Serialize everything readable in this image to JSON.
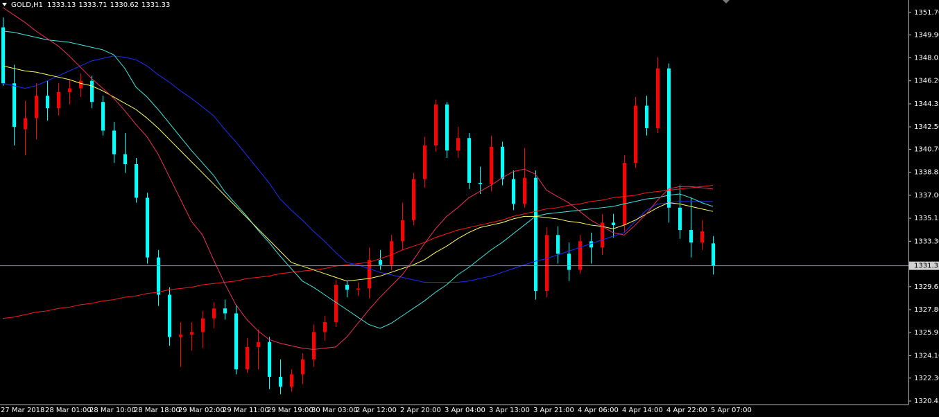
{
  "chart_data": {
    "type": "candlestick",
    "symbol": "GOLD,H1",
    "categories": [
      "27 Mar 2018",
      null,
      null,
      null,
      "28 Mar 01:00",
      null,
      null,
      null,
      "28 Mar 10:00",
      null,
      null,
      null,
      "28 Mar 18:00",
      null,
      null,
      null,
      "29 Mar 02:00",
      null,
      null,
      null,
      "29 Mar 11:00",
      null,
      null,
      null,
      "29 Mar 19:00",
      null,
      null,
      null,
      "30 Mar 03:00",
      null,
      null,
      null,
      "2 Apr 12:00",
      null,
      null,
      null,
      "2 Apr 20:00",
      null,
      null,
      null,
      "3 Apr 04:00",
      null,
      null,
      null,
      "3 Apr 13:00",
      null,
      null,
      null,
      "3 Apr 21:00",
      null,
      null,
      null,
      "4 Apr 06:00",
      null,
      null,
      null,
      "4 Apr 14:00",
      null,
      null,
      null,
      "4 Apr 22:00",
      null,
      null,
      null,
      "5 Apr 07:00"
    ],
    "ohlc": [
      [
        1350.5,
        1351.3,
        1345.8,
        1346.0
      ],
      [
        1346.0,
        1347.5,
        1341.0,
        1342.5
      ],
      [
        1342.3,
        1344.6,
        1340.2,
        1343.2
      ],
      [
        1343.2,
        1346.0,
        1341.5,
        1345.0
      ],
      [
        1345.0,
        1346.2,
        1343.0,
        1344.0
      ],
      [
        1344.0,
        1346.0,
        1343.4,
        1345.3
      ],
      [
        1345.3,
        1346.3,
        1344.3,
        1345.6
      ],
      [
        1345.6,
        1346.8,
        1344.9,
        1346.2
      ],
      [
        1346.2,
        1346.6,
        1344.0,
        1344.5
      ],
      [
        1344.5,
        1345.0,
        1341.8,
        1342.2
      ],
      [
        1342.2,
        1342.9,
        1339.6,
        1340.3
      ],
      [
        1340.3,
        1342.0,
        1338.8,
        1339.5
      ],
      [
        1339.5,
        1340.0,
        1336.4,
        1336.8
      ],
      [
        1336.8,
        1337.2,
        1331.5,
        1332.0
      ],
      [
        1332.0,
        1332.6,
        1328.1,
        1329.0
      ],
      [
        1329.0,
        1329.6,
        1324.9,
        1325.6
      ],
      [
        1325.6,
        1326.8,
        1323.2,
        1325.8
      ],
      [
        1325.8,
        1326.8,
        1324.5,
        1326.0
      ],
      [
        1326.0,
        1327.7,
        1324.7,
        1327.1
      ],
      [
        1327.1,
        1328.4,
        1326.3,
        1327.9
      ],
      [
        1327.9,
        1328.6,
        1327.0,
        1327.5
      ],
      [
        1327.5,
        1328.2,
        1322.6,
        1323.0
      ],
      [
        1323.0,
        1325.5,
        1322.7,
        1324.8
      ],
      [
        1324.8,
        1326.2,
        1323.0,
        1325.2
      ],
      [
        1325.2,
        1325.6,
        1321.4,
        1322.4
      ],
      [
        1322.4,
        1323.8,
        1321.0,
        1321.6
      ],
      [
        1321.6,
        1323.0,
        1321.2,
        1322.6
      ],
      [
        1322.6,
        1324.3,
        1321.8,
        1323.8
      ],
      [
        1323.8,
        1326.6,
        1323.2,
        1326.0
      ],
      [
        1326.0,
        1327.3,
        1325.3,
        1326.8
      ],
      [
        1326.8,
        1330.2,
        1326.4,
        1329.8
      ],
      [
        1329.8,
        1330.1,
        1328.8,
        1329.4
      ],
      [
        1329.4,
        1330.0,
        1328.9,
        1329.5
      ],
      [
        1329.5,
        1332.8,
        1328.7,
        1331.8
      ],
      [
        1331.8,
        1332.6,
        1331.0,
        1331.4
      ],
      [
        1331.4,
        1333.8,
        1331.0,
        1333.3
      ],
      [
        1333.3,
        1336.4,
        1332.6,
        1335.0
      ],
      [
        1335.0,
        1338.8,
        1334.6,
        1338.3
      ],
      [
        1338.3,
        1341.7,
        1337.6,
        1341.0
      ],
      [
        1341.0,
        1344.7,
        1340.5,
        1344.3
      ],
      [
        1344.3,
        1344.5,
        1340.0,
        1340.6
      ],
      [
        1340.6,
        1342.5,
        1340.0,
        1341.6
      ],
      [
        1341.6,
        1342.0,
        1337.5,
        1338.0
      ],
      [
        1338.0,
        1339.3,
        1337.1,
        1337.9
      ],
      [
        1337.9,
        1341.8,
        1337.3,
        1340.9
      ],
      [
        1340.9,
        1341.3,
        1337.8,
        1338.3
      ],
      [
        1338.3,
        1339.0,
        1335.8,
        1336.3
      ],
      [
        1336.3,
        1340.8,
        1336.0,
        1338.4
      ],
      [
        1338.4,
        1339.0,
        1328.6,
        1329.3
      ],
      [
        1329.3,
        1334.4,
        1328.8,
        1333.8
      ],
      [
        1333.8,
        1334.5,
        1331.5,
        1332.3
      ],
      [
        1332.3,
        1333.2,
        1330.1,
        1331.0
      ],
      [
        1331.0,
        1333.8,
        1330.7,
        1333.3
      ],
      [
        1333.3,
        1334.0,
        1331.5,
        1332.8
      ],
      [
        1332.8,
        1335.5,
        1332.2,
        1334.8
      ],
      [
        1334.8,
        1335.5,
        1333.6,
        1334.6
      ],
      [
        1334.6,
        1340.2,
        1334.0,
        1339.6
      ],
      [
        1339.6,
        1344.9,
        1339.2,
        1344.2
      ],
      [
        1344.2,
        1345.0,
        1341.8,
        1342.4
      ],
      [
        1342.4,
        1348.1,
        1342.0,
        1347.2
      ],
      [
        1347.2,
        1347.6,
        1334.8,
        1336.0
      ],
      [
        1336.0,
        1337.8,
        1333.5,
        1334.2
      ],
      [
        1334.2,
        1336.8,
        1332.0,
        1333.2
      ],
      [
        1333.2,
        1335.0,
        1332.6,
        1334.1
      ],
      [
        1333.13,
        1333.71,
        1330.62,
        1331.33
      ]
    ],
    "bull_color": "#ff0000",
    "bear_color": "#00ffff",
    "series": [
      {
        "color": "#ff1a1a",
        "values": [
          1327.1,
          1327.2,
          1327.4,
          1327.6,
          1327.7,
          1327.9,
          1328.0,
          1328.2,
          1328.3,
          1328.5,
          1328.6,
          1328.8,
          1328.9,
          1329.1,
          1329.2,
          1329.4,
          1329.5,
          1329.6,
          1329.8,
          1329.9,
          1330.0,
          1330.1,
          1330.3,
          1330.4,
          1330.5,
          1330.7,
          1330.8,
          1330.9,
          1331.0,
          1331.1,
          1331.3,
          1331.4,
          1331.5,
          1331.6,
          1331.9,
          1332.2,
          1332.6,
          1332.9,
          1333.2,
          1333.6,
          1333.9,
          1334.2,
          1334.4,
          1334.6,
          1334.8,
          1335.0,
          1335.3,
          1335.5,
          1335.7,
          1335.9,
          1336.0,
          1336.2,
          1336.3,
          1336.5,
          1336.6,
          1336.8,
          1336.9,
          1337.0,
          1337.2,
          1337.3,
          1337.4,
          1337.5,
          1337.6,
          1337.7,
          1337.8
        ]
      },
      {
        "color": "#1f2fff",
        "values": [
          1346.0,
          1345.8,
          1345.6,
          1345.8,
          1346.2,
          1346.6,
          1347.0,
          1347.4,
          1347.8,
          1348.0,
          1348.2,
          1348.1,
          1347.9,
          1347.4,
          1346.7,
          1346.1,
          1345.4,
          1344.8,
          1344.1,
          1343.4,
          1342.3,
          1341.3,
          1340.2,
          1339.1,
          1338.0,
          1336.7,
          1335.8,
          1335.0,
          1334.1,
          1333.3,
          1332.4,
          1331.6,
          1331.4,
          1331.1,
          1330.8,
          1330.6,
          1330.4,
          1330.2,
          1330.0,
          1330.0,
          1330.0,
          1330.0,
          1330.1,
          1330.3,
          1330.5,
          1330.8,
          1331.1,
          1331.4,
          1331.7,
          1331.9,
          1332.2,
          1332.5,
          1332.8,
          1333.1,
          1333.4,
          1333.7,
          1334.0,
          1334.9,
          1335.8,
          1336.3,
          1336.4,
          1336.5,
          1336.5,
          1336.5,
          1336.5
        ]
      },
      {
        "color": "#40e8e0",
        "values": [
          1350.2,
          1350.1,
          1349.9,
          1349.7,
          1349.5,
          1349.4,
          1349.3,
          1349.1,
          1348.9,
          1348.7,
          1348.3,
          1347.2,
          1345.7,
          1344.9,
          1343.9,
          1342.8,
          1341.7,
          1340.6,
          1339.6,
          1338.6,
          1337.3,
          1336.3,
          1335.3,
          1334.2,
          1333.2,
          1332.1,
          1331.1,
          1330.1,
          1329.6,
          1329.0,
          1328.4,
          1327.8,
          1327.2,
          1326.6,
          1326.3,
          1326.7,
          1327.3,
          1327.9,
          1328.5,
          1329.2,
          1329.8,
          1330.6,
          1331.2,
          1331.9,
          1332.6,
          1333.2,
          1333.9,
          1334.6,
          1335.3,
          1335.5,
          1335.6,
          1335.7,
          1335.8,
          1335.9,
          1336.0,
          1336.1,
          1336.3,
          1336.5,
          1336.7,
          1336.8,
          1337.0,
          1337.1,
          1336.8,
          1336.4,
          1336.1
        ]
      },
      {
        "color": "#ffff60",
        "values": [
          1347.4,
          1347.2,
          1347.0,
          1346.9,
          1346.7,
          1346.5,
          1346.3,
          1346.0,
          1345.8,
          1345.4,
          1344.9,
          1344.4,
          1343.9,
          1343.2,
          1342.4,
          1341.5,
          1340.6,
          1339.7,
          1338.8,
          1337.9,
          1337.0,
          1336.1,
          1335.2,
          1334.3,
          1333.4,
          1332.5,
          1331.6,
          1331.3,
          1331.0,
          1330.7,
          1330.4,
          1330.1,
          1330.2,
          1330.3,
          1330.5,
          1330.8,
          1331.1,
          1331.4,
          1331.8,
          1332.4,
          1332.9,
          1333.5,
          1334.0,
          1334.4,
          1334.6,
          1334.8,
          1335.1,
          1335.3,
          1335.3,
          1335.2,
          1335.1,
          1334.9,
          1334.8,
          1334.6,
          1334.5,
          1334.3,
          1334.6,
          1335.0,
          1335.5,
          1336.0,
          1336.4,
          1336.3,
          1336.1,
          1335.9,
          1335.7
        ]
      },
      {
        "color": "#f0305a",
        "values": [
          1352.1,
          1351.5,
          1350.9,
          1350.2,
          1349.6,
          1349.0,
          1348.2,
          1347.3,
          1346.4,
          1345.6,
          1344.8,
          1343.8,
          1342.7,
          1341.7,
          1340.3,
          1338.5,
          1336.7,
          1334.9,
          1333.8,
          1331.8,
          1329.9,
          1328.2,
          1327.0,
          1326.1,
          1325.4,
          1325.1,
          1324.9,
          1324.7,
          1324.6,
          1324.7,
          1324.8,
          1325.6,
          1326.7,
          1327.8,
          1328.8,
          1329.7,
          1330.6,
          1331.8,
          1333.1,
          1334.3,
          1335.3,
          1336.0,
          1336.8,
          1337.3,
          1337.8,
          1338.4,
          1338.9,
          1339.1,
          1338.7,
          1337.4,
          1336.9,
          1336.4,
          1335.7,
          1335.0,
          1334.5,
          1334.0,
          1333.8,
          1334.6,
          1335.5,
          1336.6,
          1337.5,
          1337.7,
          1337.7,
          1337.6,
          1337.5
        ]
      }
    ],
    "ylim": [
      1320.17,
      1352.7
    ],
    "yticks": [
      {
        "value": 1351.7,
        "label": "1351.70"
      },
      {
        "value": 1349.9,
        "label": "1349.90"
      },
      1348.05,
      {
        "value": 1346.2,
        "label": "1346.20"
      },
      1344.35,
      {
        "value": 1342.5,
        "label": "1342.50"
      },
      {
        "value": 1340.7,
        "label": "1340.70"
      },
      1338.85,
      {
        "value": 1337,
        "label": "1337.00"
      },
      1335.15,
      {
        "value": 1333.3,
        "label": "1333.30"
      },
      1329.65,
      {
        "value": 1327.8,
        "label": "1327.80"
      },
      1325.95,
      {
        "value": 1324.1,
        "label": "1324.10"
      },
      {
        "value": 1322.3,
        "label": "1322.30"
      },
      1320.45
    ],
    "current_price": 1331.33,
    "current_price_color": "#7d8fb0"
  }
}
